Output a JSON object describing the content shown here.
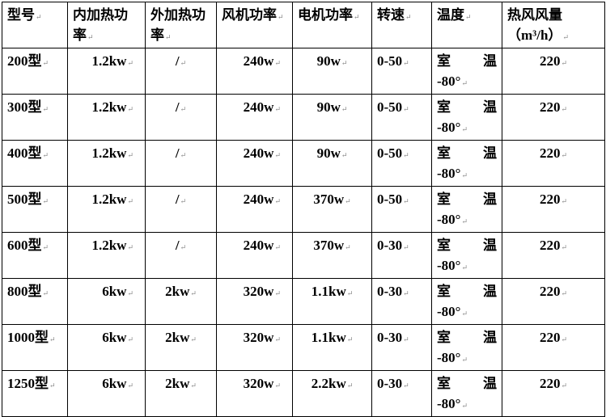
{
  "headers": [
    "型号",
    "内加热功率",
    "外加热功率",
    "风机功率",
    "电机功率",
    "转速",
    "温度",
    "热风风量（m³/h）"
  ],
  "rows": [
    {
      "model": "200型",
      "inner": "1.2kw",
      "outer": "/",
      "fan": "240w",
      "motor": "90w",
      "speed": "0-50",
      "temp_a": "室温",
      "temp_b": "-80°",
      "air": "220"
    },
    {
      "model": "300型",
      "inner": "1.2kw",
      "outer": "/",
      "fan": "240w",
      "motor": "90w",
      "speed": "0-50",
      "temp_a": "室温",
      "temp_b": "-80°",
      "air": "220"
    },
    {
      "model": "400型",
      "inner": "1.2kw",
      "outer": "/",
      "fan": "240w",
      "motor": "90w",
      "speed": "0-50",
      "temp_a": "室温",
      "temp_b": "-80°",
      "air": "220"
    },
    {
      "model": "500型",
      "inner": "1.2kw",
      "outer": "/",
      "fan": "240w",
      "motor": "370w",
      "speed": "0-50",
      "temp_a": "室温",
      "temp_b": "-80°",
      "air": "220"
    },
    {
      "model": "600型",
      "inner": "1.2kw",
      "outer": "/",
      "fan": "240w",
      "motor": "370w",
      "speed": "0-30",
      "temp_a": "室温",
      "temp_b": "-80°",
      "air": "220"
    },
    {
      "model": "800型",
      "inner": "6kw",
      "outer": "2kw",
      "fan": "320w",
      "motor": "1.1kw",
      "speed": "0-30",
      "temp_a": "室温",
      "temp_b": "-80°",
      "air": "220"
    },
    {
      "model": "1000型",
      "inner": "6kw",
      "outer": "2kw",
      "fan": "320w",
      "motor": "1.1kw",
      "speed": "0-30",
      "temp_a": "室温",
      "temp_b": "-80°",
      "air": "220"
    },
    {
      "model": "1250型",
      "inner": "6kw",
      "outer": "2kw",
      "fan": "320w",
      "motor": "2.2kw",
      "speed": "0-30",
      "temp_a": "室温",
      "temp_b": "-80°",
      "air": "220"
    }
  ]
}
